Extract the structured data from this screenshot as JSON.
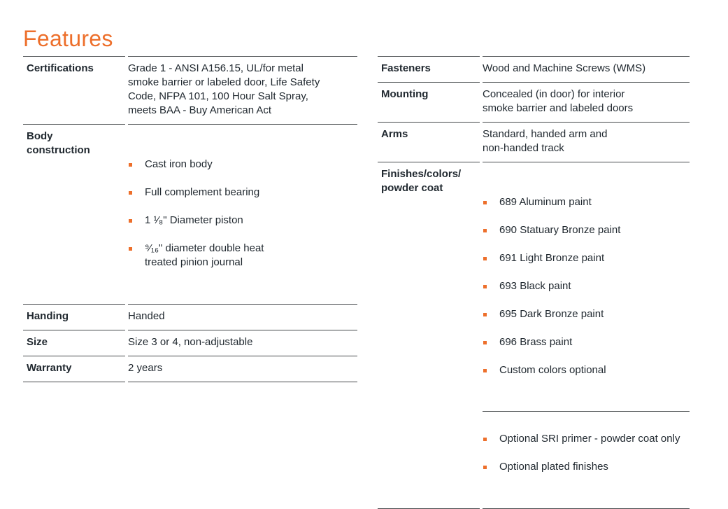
{
  "page": {
    "title": "Features",
    "accent_color": "#ED6F2B",
    "text_color": "#212930",
    "line_color": "#45494B"
  },
  "left_table": {
    "rows": [
      {
        "label": "Certifications",
        "value": "Grade 1 - ANSI A156.15, UL/for metal\nsmoke barrier or labeled door, Life Safety\nCode, NFPA 101, 100 Hour Salt Spray,\nmeets BAA - Buy American Act"
      },
      {
        "label": "Body\nconstruction",
        "bullets": [
          "Cast iron body",
          "Full complement bearing",
          "1 ¹⁄₈\" Diameter piston",
          "⁹⁄₁₆\" diameter double heat\ntreated pinion journal"
        ]
      },
      {
        "label": "Handing",
        "value": "Handed"
      },
      {
        "label": "Size",
        "value": "Size 3 or 4, non-adjustable"
      },
      {
        "label": "Warranty",
        "value": "2 years"
      }
    ]
  },
  "right_table": {
    "rows": [
      {
        "label": "Fasteners",
        "value": "Wood and Machine Screws (WMS)"
      },
      {
        "label": "Mounting",
        "value": "Concealed (in door) for interior\nsmoke barrier and labeled doors"
      },
      {
        "label": "Arms",
        "value": "Standard, handed arm and\nnon-handed track"
      },
      {
        "label": "Finishes/colors/\npowder coat",
        "bullets": [
          "689 Aluminum paint",
          "690 Statuary Bronze paint",
          "691 Light Bronze paint",
          "693 Black paint",
          "695 Dark Bronze paint",
          "696 Brass paint",
          "Custom colors optional"
        ],
        "optional_bullets": [
          "Optional SRI primer - powder coat only",
          "Optional plated finishes"
        ]
      }
    ]
  }
}
